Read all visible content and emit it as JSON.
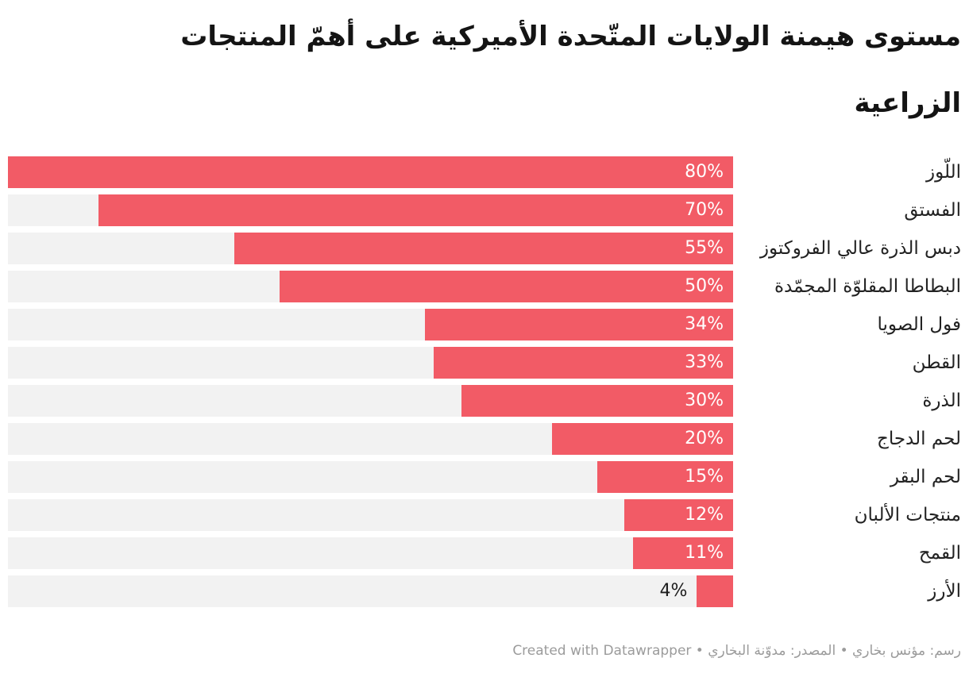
{
  "chart_data": {
    "type": "bar",
    "orientation": "horizontal-rtl",
    "title": "مستوى هيمنة الولايات المتّحدة الأميركية على أهمّ المنتجات الزراعية",
    "title_lines": [
      "مستوى هيمنة الولايات المتّحدة الأميركية على أهمّ المنتجات",
      "الزراعية"
    ],
    "categories": [
      "اللّوز",
      "الفستق",
      "دبس الذرة عالي الفروكتوز",
      "البطاطا المقلوّة المجمّدة",
      "فول الصويا",
      "القطن",
      "الذرة",
      "لحم الدجاج",
      "لحم البقر",
      "منتجات الألبان",
      "القمح",
      "الأرز"
    ],
    "values": [
      80,
      70,
      55,
      50,
      34,
      33,
      30,
      20,
      15,
      12,
      11,
      4
    ],
    "value_labels": [
      "80%",
      "70%",
      "55%",
      "50%",
      "34%",
      "33%",
      "30%",
      "20%",
      "15%",
      "12%",
      "11%",
      "4%"
    ],
    "axis_max": 80,
    "unit": "%",
    "grid": false,
    "legend": false,
    "bar_color": "#f25b66",
    "track_color": "#f2f2f2",
    "value_label_inside_color": "#ffffff",
    "value_label_outside_color": "#1d1d1d"
  },
  "footer": {
    "text": "رسم: مؤنس بخاري • المصدر: مدوّنة البخاري • Created with Datawrapper",
    "credit": "Created with Datawrapper",
    "author": "رسم: مؤنس بخاري",
    "source": "المصدر: مدوّنة البخاري"
  }
}
